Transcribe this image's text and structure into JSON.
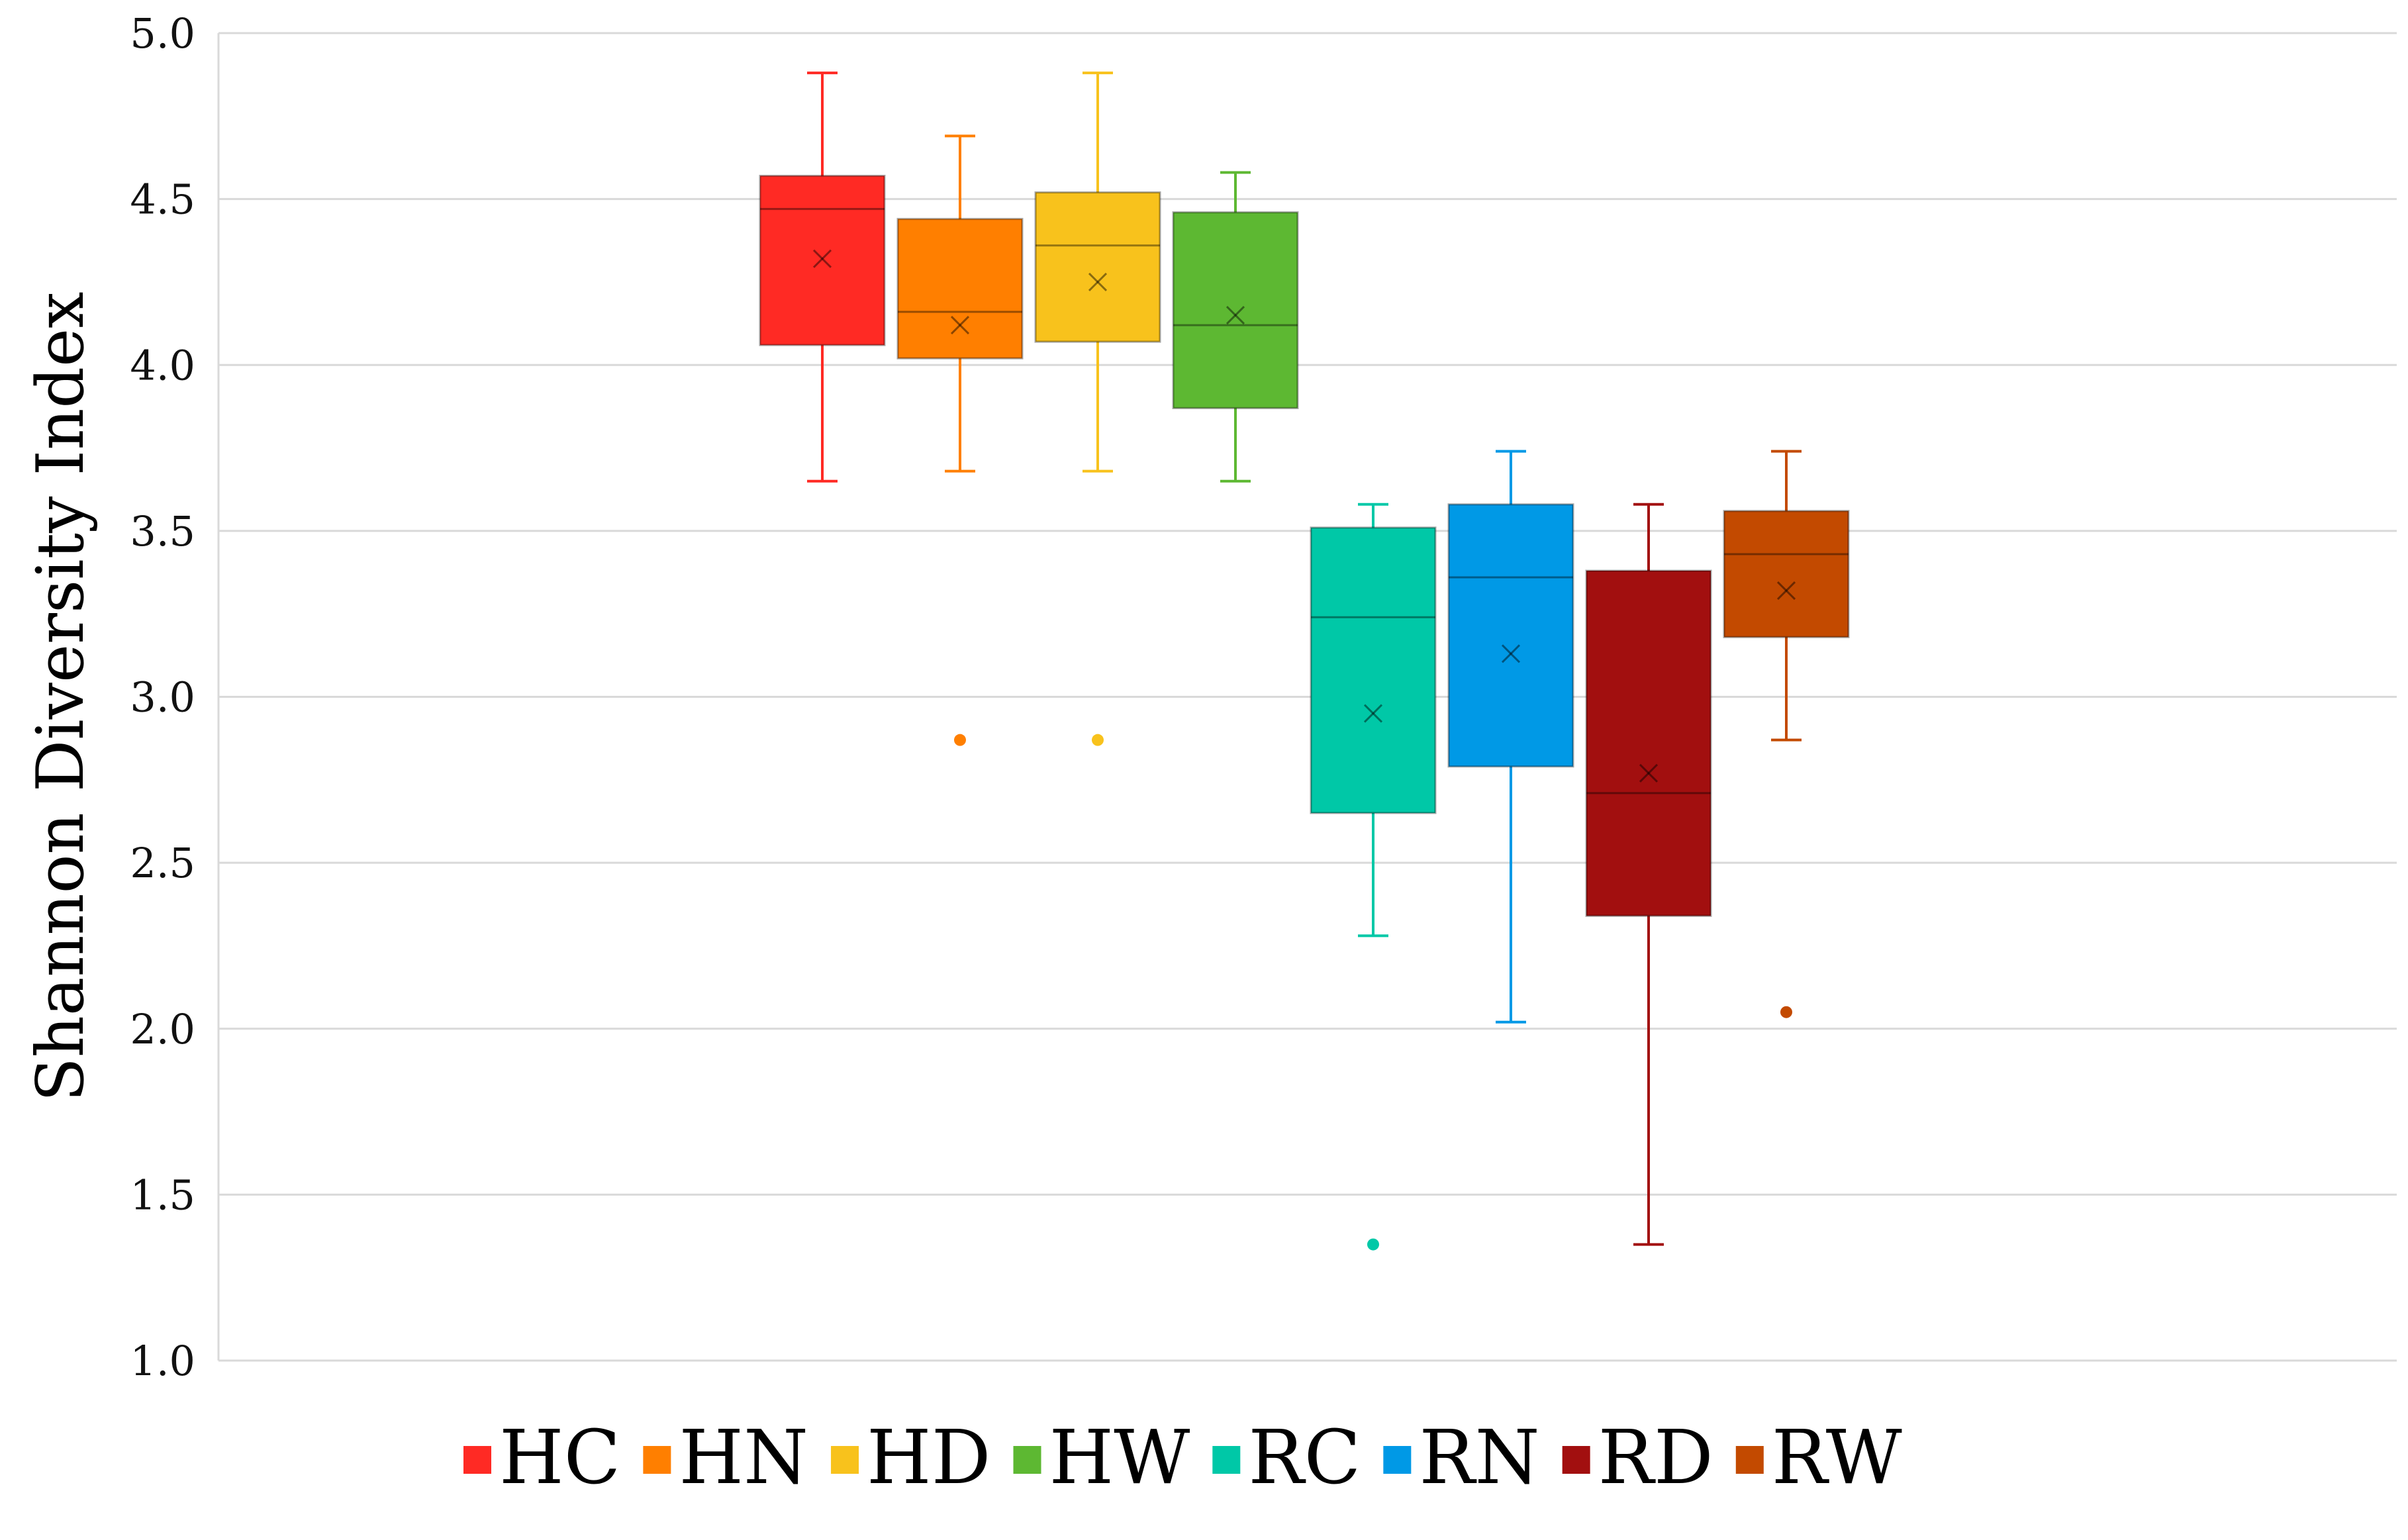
{
  "chart_data": {
    "type": "boxplot",
    "title": "",
    "xlabel": "",
    "ylabel": "Shannon Diversity Index",
    "ylim": [
      1.0,
      5.0
    ],
    "yticks": [
      "1.0",
      "1.5",
      "2.0",
      "2.5",
      "3.0",
      "3.5",
      "4.0",
      "4.5",
      "5.0"
    ],
    "grid": true,
    "legend_position": "bottom",
    "series": [
      {
        "name": "HC",
        "color": "#ff2a24",
        "min": 3.65,
        "q1": 4.06,
        "median": 4.47,
        "q3": 4.57,
        "max": 4.88,
        "mean": 4.32,
        "outliers": []
      },
      {
        "name": "HN",
        "color": "#ff7f00",
        "min": 3.68,
        "q1": 4.02,
        "median": 4.16,
        "q3": 4.44,
        "max": 4.69,
        "mean": 4.12,
        "outliers": [
          2.87
        ]
      },
      {
        "name": "HD",
        "color": "#f8c21c",
        "min": 3.68,
        "q1": 4.07,
        "median": 4.36,
        "q3": 4.52,
        "max": 4.88,
        "mean": 4.25,
        "outliers": [
          2.87
        ]
      },
      {
        "name": "HW",
        "color": "#5db832",
        "min": 3.65,
        "q1": 3.87,
        "median": 4.12,
        "q3": 4.46,
        "max": 4.58,
        "mean": 4.15,
        "outliers": []
      },
      {
        "name": "RC",
        "color": "#00c8a7",
        "min": 2.28,
        "q1": 2.65,
        "median": 3.24,
        "q3": 3.51,
        "max": 3.58,
        "mean": 2.95,
        "outliers": [
          1.35
        ]
      },
      {
        "name": "RN",
        "color": "#0099e6",
        "min": 2.02,
        "q1": 2.79,
        "median": 3.36,
        "q3": 3.58,
        "max": 3.74,
        "mean": 3.13,
        "outliers": []
      },
      {
        "name": "RD",
        "color": "#a20f0f",
        "min": 1.35,
        "q1": 2.34,
        "median": 2.71,
        "q3": 3.38,
        "max": 3.58,
        "mean": 2.77,
        "outliers": []
      },
      {
        "name": "RW",
        "color": "#c34a00",
        "min": 2.87,
        "q1": 3.18,
        "median": 3.43,
        "q3": 3.56,
        "max": 3.74,
        "mean": 3.32,
        "outliers": [
          2.05
        ]
      }
    ]
  }
}
